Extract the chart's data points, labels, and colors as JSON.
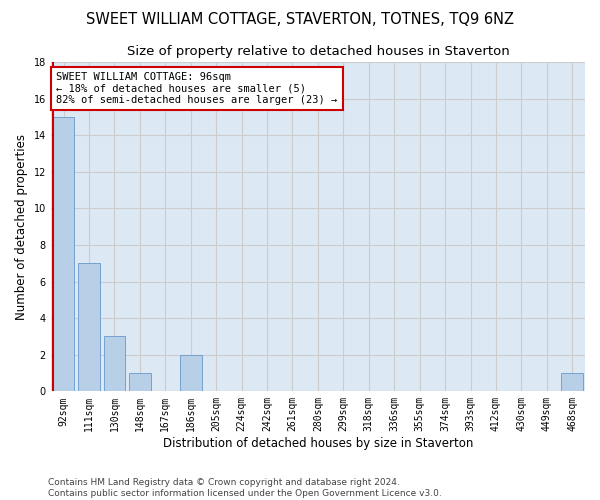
{
  "title": "SWEET WILLIAM COTTAGE, STAVERTON, TOTNES, TQ9 6NZ",
  "subtitle": "Size of property relative to detached houses in Staverton",
  "xlabel": "Distribution of detached houses by size in Staverton",
  "ylabel": "Number of detached properties",
  "categories": [
    "92sqm",
    "111sqm",
    "130sqm",
    "148sqm",
    "167sqm",
    "186sqm",
    "205sqm",
    "224sqm",
    "242sqm",
    "261sqm",
    "280sqm",
    "299sqm",
    "318sqm",
    "336sqm",
    "355sqm",
    "374sqm",
    "393sqm",
    "412sqm",
    "430sqm",
    "449sqm",
    "468sqm"
  ],
  "values": [
    15,
    7,
    3,
    1,
    0,
    2,
    0,
    0,
    0,
    0,
    0,
    0,
    0,
    0,
    0,
    0,
    0,
    0,
    0,
    0,
    1
  ],
  "bar_color": "#b8cfe8",
  "bar_edge_color": "#6699cc",
  "annotation_line1": "SWEET WILLIAM COTTAGE: 96sqm",
  "annotation_line2": "← 18% of detached houses are smaller (5)",
  "annotation_line3": "82% of semi-detached houses are larger (23) →",
  "annotation_box_color": "#ffffff",
  "annotation_box_edge_color": "#cc0000",
  "ylim_max": 18,
  "yticks": [
    0,
    2,
    4,
    6,
    8,
    10,
    12,
    14,
    16,
    18
  ],
  "grid_color": "#cccccc",
  "background_color": "#dde8f5",
  "footer_text": "Contains HM Land Registry data © Crown copyright and database right 2024.\nContains public sector information licensed under the Open Government Licence v3.0.",
  "subject_line_color": "#cc0000",
  "title_fontsize": 10.5,
  "subtitle_fontsize": 9.5,
  "ylabel_fontsize": 8.5,
  "xlabel_fontsize": 8.5,
  "tick_fontsize": 7,
  "annotation_fontsize": 7.5,
  "footer_fontsize": 6.5
}
